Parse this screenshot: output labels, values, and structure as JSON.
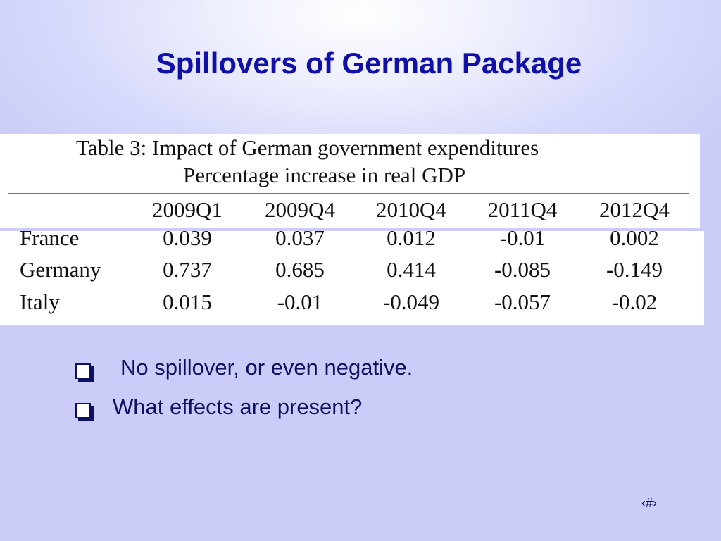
{
  "slide": {
    "title": "Spillovers of German Package",
    "slide_number": "‹#›"
  },
  "table": {
    "caption": "Table 3:  Impact of German government expenditures",
    "subtitle": "Percentage increase in real GDP",
    "columns": [
      "2009Q1",
      "2009Q4",
      "2010Q4",
      "2011Q4",
      "2012Q4"
    ],
    "rows": [
      {
        "label": "France",
        "values": [
          "0.039",
          "0.037",
          "0.012",
          "-0.01",
          "0.002"
        ]
      },
      {
        "label": "Germany",
        "values": [
          "0.737",
          "0.685",
          "0.414",
          "-0.085",
          "-0.149"
        ]
      },
      {
        "label": "Italy",
        "values": [
          "0.015",
          "-0.01",
          "-0.049",
          "-0.057",
          "-0.02"
        ]
      }
    ]
  },
  "bullets": [
    {
      "text": "No spillover, or even negative."
    },
    {
      "text": "What effects are present?"
    }
  ],
  "colors": {
    "title": "#1010a8",
    "body_text": "#101060",
    "background": "#cfd1f9"
  },
  "icons": {
    "bullet": "hollow-square-bullet-icon"
  }
}
